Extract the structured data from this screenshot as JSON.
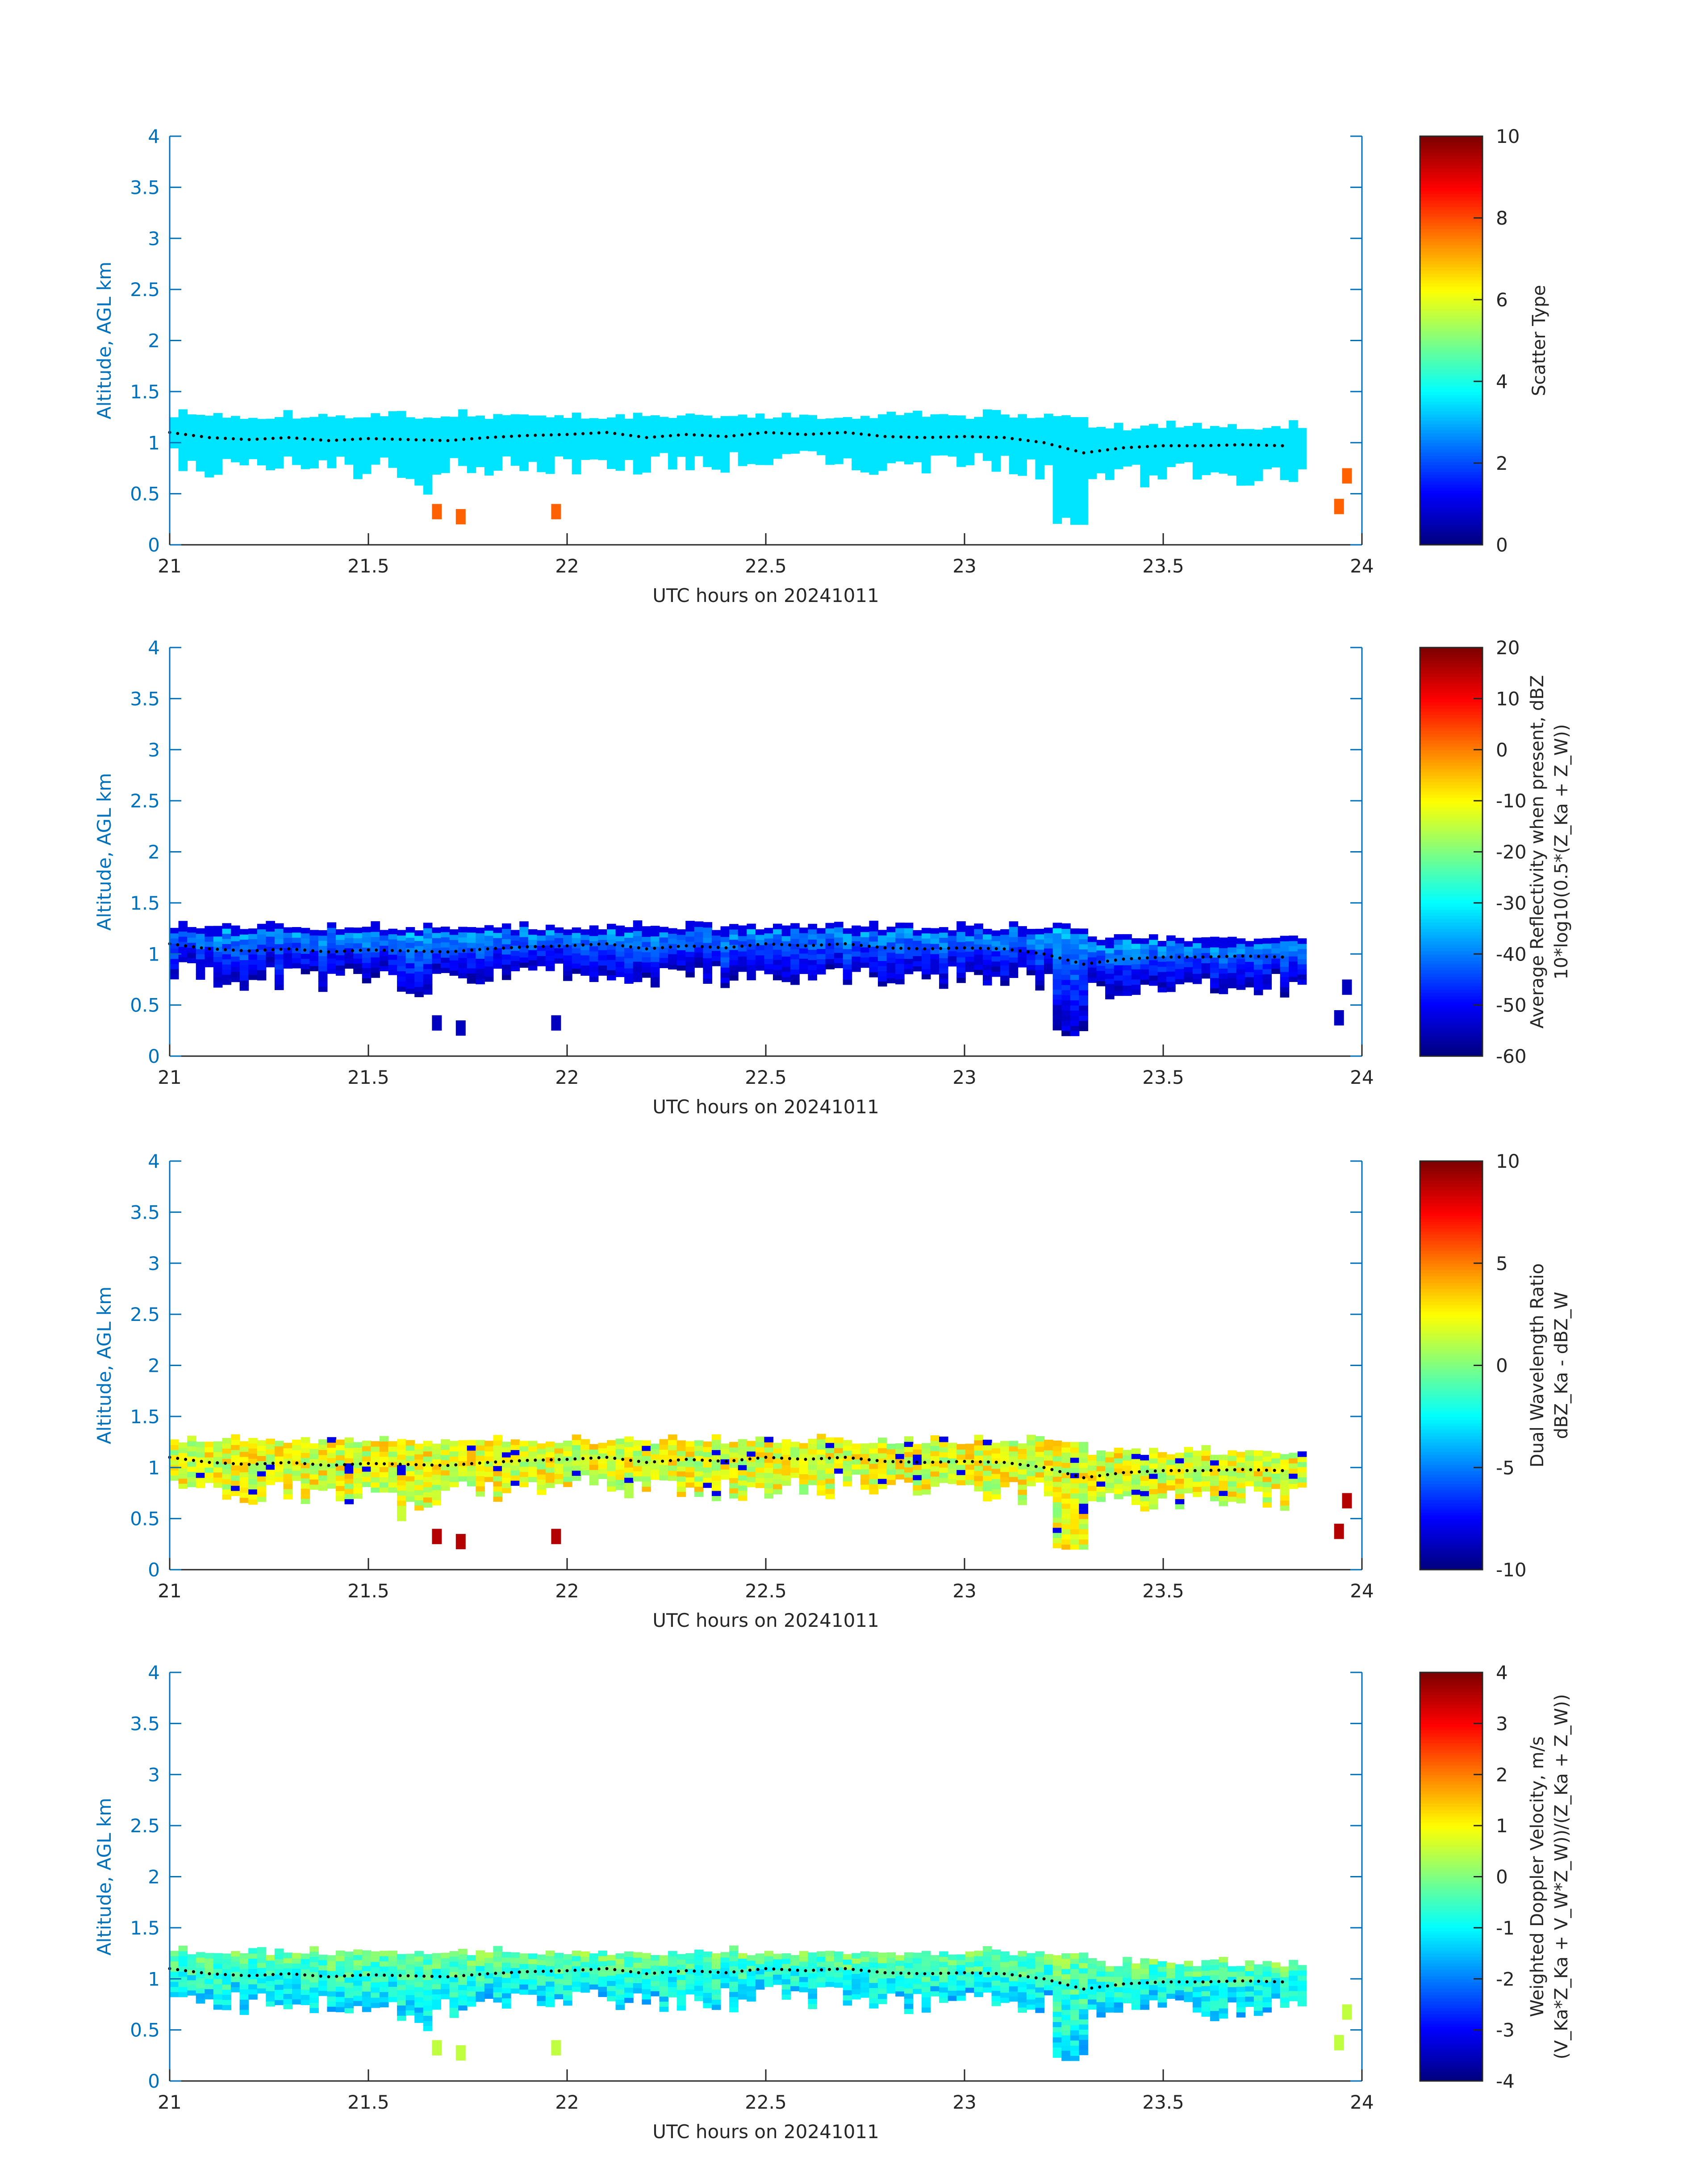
{
  "chart_data": [
    {
      "type": "heatmap",
      "title": "",
      "xlabel": "UTC hours on 20241011",
      "ylabel": "Altitude, AGL km",
      "xlim": [
        21,
        24
      ],
      "ylim": [
        0,
        4
      ],
      "xticks": [
        "21",
        "21.5",
        "22",
        "22.5",
        "23",
        "23.5",
        "24"
      ],
      "yticks": [
        "0",
        "0.5",
        "1",
        "1.5",
        "2",
        "2.5",
        "3",
        "3.5",
        "4"
      ],
      "colorbar": {
        "label_lines": [
          "Scatter Type"
        ],
        "clim": [
          0,
          10
        ],
        "ticks": [
          "0",
          "2",
          "4",
          "6",
          "8",
          "10"
        ]
      },
      "field": "scatter_type",
      "dominant_value": 3.5,
      "secondary_value": 7.8
    },
    {
      "type": "heatmap",
      "title": "",
      "xlabel": "UTC hours on 20241011",
      "ylabel": "Altitude, AGL km",
      "xlim": [
        21,
        24
      ],
      "ylim": [
        0,
        4
      ],
      "xticks": [
        "21",
        "21.5",
        "22",
        "22.5",
        "23",
        "23.5",
        "24"
      ],
      "yticks": [
        "0",
        "0.5",
        "1",
        "1.5",
        "2",
        "2.5",
        "3",
        "3.5",
        "4"
      ],
      "colorbar": {
        "label_lines": [
          "Average Reflectivity when present, dBZ",
          "10*log10(0.5*(Z_Ka + Z_W))"
        ],
        "clim": [
          -60,
          20
        ],
        "ticks": [
          "-60",
          "-50",
          "-40",
          "-30",
          "-20",
          "-10",
          "0",
          "10",
          "20"
        ]
      },
      "field": "reflectivity",
      "top_value": -35,
      "bottom_value": -55
    },
    {
      "type": "heatmap",
      "title": "",
      "xlabel": "UTC hours on 20241011",
      "ylabel": "Altitude, AGL km",
      "xlim": [
        21,
        24
      ],
      "ylim": [
        0,
        4
      ],
      "xticks": [
        "21",
        "21.5",
        "22",
        "22.5",
        "23",
        "23.5",
        "24"
      ],
      "yticks": [
        "0",
        "0.5",
        "1",
        "1.5",
        "2",
        "2.5",
        "3",
        "3.5",
        "4"
      ],
      "colorbar": {
        "label_lines": [
          "Dual Wavelength Ratio",
          "dBZ_Ka - dBZ_W"
        ],
        "clim": [
          -10,
          10
        ],
        "ticks": [
          "-10",
          "-5",
          "0",
          "5",
          "10"
        ]
      },
      "field": "dwr",
      "typical_value": 2
    },
    {
      "type": "heatmap",
      "title": "",
      "xlabel": "UTC hours on 20241011",
      "ylabel": "Altitude, AGL km",
      "xlim": [
        21,
        24
      ],
      "ylim": [
        0,
        4
      ],
      "xticks": [
        "21",
        "21.5",
        "22",
        "22.5",
        "23",
        "23.5",
        "24"
      ],
      "yticks": [
        "0",
        "0.5",
        "1",
        "1.5",
        "2",
        "2.5",
        "3",
        "3.5",
        "4"
      ],
      "colorbar": {
        "label_lines": [
          "Weighted Doppler Velocity, m/s",
          "(V_Ka*Z_Ka + V_W*Z_W))/(Z_Ka + Z_W))"
        ],
        "clim": [
          -4,
          4
        ],
        "ticks": [
          "-4",
          "-3",
          "-2",
          "-1",
          "0",
          "1",
          "2",
          "3",
          "4"
        ]
      },
      "field": "doppler_velocity",
      "typical_value": -0.7
    }
  ],
  "cloud_base_km": [
    [
      21.0,
      1.1
    ],
    [
      21.1,
      1.05
    ],
    [
      21.2,
      1.03
    ],
    [
      21.3,
      1.05
    ],
    [
      21.4,
      1.02
    ],
    [
      21.5,
      1.04
    ],
    [
      21.6,
      1.03
    ],
    [
      21.7,
      1.02
    ],
    [
      21.8,
      1.05
    ],
    [
      21.9,
      1.07
    ],
    [
      22.0,
      1.08
    ],
    [
      22.1,
      1.1
    ],
    [
      22.2,
      1.05
    ],
    [
      22.3,
      1.08
    ],
    [
      22.4,
      1.06
    ],
    [
      22.5,
      1.1
    ],
    [
      22.6,
      1.08
    ],
    [
      22.7,
      1.1
    ],
    [
      22.8,
      1.06
    ],
    [
      22.9,
      1.05
    ],
    [
      23.0,
      1.06
    ],
    [
      23.1,
      1.05
    ],
    [
      23.2,
      1.0
    ],
    [
      23.3,
      0.9
    ],
    [
      23.4,
      0.95
    ],
    [
      23.5,
      0.97
    ],
    [
      23.6,
      0.97
    ],
    [
      23.7,
      0.98
    ],
    [
      23.8,
      0.97
    ]
  ],
  "colors": {
    "axis": "#0072BD",
    "text": "#262626",
    "box": "#262626"
  }
}
